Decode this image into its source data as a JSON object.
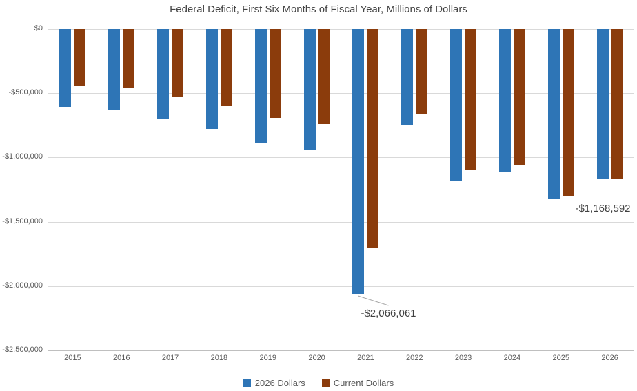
{
  "chart_data": {
    "type": "bar",
    "title": "Federal Deficit, First Six Months of Fiscal Year, Millions of Dollars",
    "xlabel": "",
    "ylabel": "",
    "ylim": [
      -2500000,
      0
    ],
    "ytick_interval": 500000,
    "grid": "horizontal",
    "legend_position": "bottom",
    "categories": [
      "2015",
      "2016",
      "2017",
      "2018",
      "2019",
      "2020",
      "2021",
      "2022",
      "2023",
      "2024",
      "2025",
      "2026"
    ],
    "series": [
      {
        "name": "2026 Dollars",
        "color": "#2E75B6",
        "values": [
          -605000,
          -634000,
          -705000,
          -776000,
          -886000,
          -940000,
          -2066061,
          -748000,
          -1178000,
          -1111000,
          -1325000,
          -1168592
        ]
      },
      {
        "name": "Current Dollars",
        "color": "#8B3C0C",
        "values": [
          -438000,
          -463000,
          -524000,
          -599000,
          -691000,
          -738000,
          -1705000,
          -663000,
          -1100000,
          -1059000,
          -1298000,
          -1168592
        ]
      }
    ],
    "yticks": [
      {
        "value": 0,
        "label": "$0"
      },
      {
        "value": -500000,
        "label": "-$500,000"
      },
      {
        "value": -1000000,
        "label": "-$1,000,000"
      },
      {
        "value": -1500000,
        "label": "-$1,500,000"
      },
      {
        "value": -2000000,
        "label": "-$2,000,000"
      },
      {
        "value": -2500000,
        "label": "-$2,500,000"
      }
    ],
    "annotations": [
      {
        "series": "2026 Dollars",
        "series_index": 0,
        "category": "2021",
        "category_index": 6,
        "text": "-$2,066,061",
        "placement": "below-right"
      },
      {
        "series": "2026 Dollars",
        "series_index": 0,
        "category": "2026",
        "category_index": 11,
        "text": "-$1,168,592",
        "placement": "below"
      }
    ],
    "colors": {
      "gridline": "#d9d9d9",
      "axis_line": "#bfbfbf",
      "axis_text": "#595959",
      "title_text": "#444444",
      "annotation_text": "#404040"
    }
  }
}
